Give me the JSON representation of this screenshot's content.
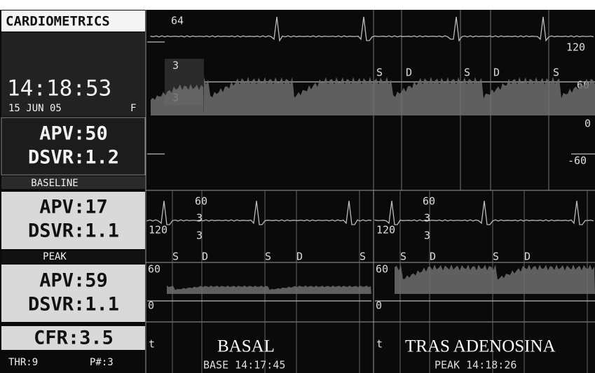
{
  "sidebar": {
    "brand": "CARDIOMETRICS",
    "time": "14:18:53",
    "date": "15 JUN 05",
    "flag": "F",
    "baseline": {
      "apv": "APV:50",
      "dsvr": "DSVR:1.2",
      "label": "BASELINE"
    },
    "peak_live": {
      "apv": "APV:17",
      "dsvr": "DSVR:1.1",
      "label": "PEAK"
    },
    "peak": {
      "apv": "APV:59",
      "dsvr": "DSVR:1.1"
    },
    "cfr": "CFR:3.5",
    "thr": "THR:9",
    "pnum": "P#:3"
  },
  "live": {
    "ecg_labels": [
      "64",
      "120"
    ],
    "scale_labels": [
      "3",
      "3"
    ],
    "velocity_labels": [
      "60",
      "0",
      "-60"
    ],
    "phase_labels": [
      "S",
      "D",
      "S",
      "D",
      "S"
    ]
  },
  "captures": [
    {
      "ecg_labels": [
        "60",
        "3",
        "3",
        "120"
      ],
      "phase_labels": [
        "S",
        "D",
        "S",
        "D",
        "S"
      ],
      "velocity_labels": [
        "60",
        "0"
      ],
      "marker": "t",
      "caption": "BASAL",
      "stamp": "BASE 14:17:45"
    },
    {
      "ecg_labels": [
        "60",
        "3",
        "3",
        "120"
      ],
      "phase_labels": [
        "S",
        "D",
        "S",
        "D"
      ],
      "velocity_labels": [
        "60",
        "0"
      ],
      "marker": "t",
      "caption": "TRAS ADENOSINA",
      "stamp": "PEAK 14:18:26"
    }
  ]
}
